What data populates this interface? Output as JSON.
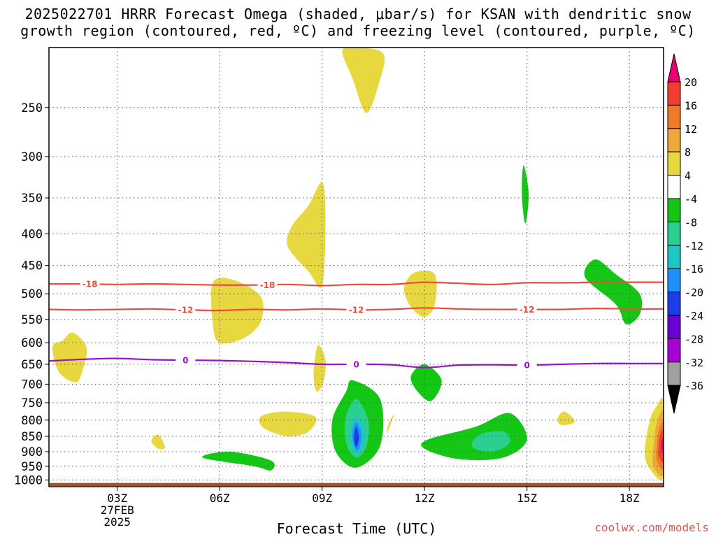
{
  "title": {
    "line1": "2025022701 HRRR Forecast Omega (shaded, μbar/s) for KSAN with dendritic snow",
    "line2": "growth region (contoured, red, ºC) and freezing level (contoured, purple, ºC)"
  },
  "chart_data": {
    "type": "contour",
    "title": "2025022701 HRRR Forecast Omega (shaded, μbar/s) for KSAN with dendritic snow growth region (contoured, red, ºC) and freezing level (contoured, purple, ºC)",
    "xlabel": "Forecast Time (UTC)",
    "ylabel": "",
    "x_ticks": [
      "03Z",
      "06Z",
      "09Z",
      "12Z",
      "15Z",
      "18Z"
    ],
    "x_tick_hours": [
      3,
      6,
      9,
      12,
      15,
      18
    ],
    "x_date_label": [
      "27FEB",
      "2025"
    ],
    "xlim_hours": [
      1,
      19
    ],
    "y_ticks": [
      250,
      300,
      350,
      400,
      450,
      500,
      550,
      600,
      650,
      700,
      750,
      800,
      850,
      900,
      950,
      1000
    ],
    "y_scale": "log",
    "ylim_hpa": [
      1025,
      200
    ],
    "grid": true,
    "colorbar": {
      "labels": [
        "20",
        "16",
        "12",
        "8",
        "4",
        "-4",
        "-8",
        "-12",
        "-16",
        "-20",
        "-24",
        "-28",
        "-32",
        "-36"
      ],
      "colors": [
        "#e8006e",
        "#f43c30",
        "#f07a2a",
        "#eca83a",
        "#e8d840",
        "#ffffff",
        "#15c715",
        "#2bcf8e",
        "#1ec6c6",
        "#1e90ff",
        "#1d3ee6",
        "#6a00d6",
        "#a800d6",
        "#a0a0a0",
        "#000000"
      ]
    },
    "contours": [
      {
        "name": "-18",
        "color": "#f04a3c",
        "points": [
          [
            1,
            482
          ],
          [
            2,
            482
          ],
          [
            3,
            483
          ],
          [
            4,
            482
          ],
          [
            5,
            483
          ],
          [
            6,
            484
          ],
          [
            7,
            484
          ],
          [
            8,
            483
          ],
          [
            9,
            485
          ],
          [
            10,
            483
          ],
          [
            11,
            483
          ],
          [
            12,
            479
          ],
          [
            13,
            481
          ],
          [
            14,
            483
          ],
          [
            15,
            480
          ],
          [
            16,
            480
          ],
          [
            17,
            479
          ],
          [
            18,
            479
          ],
          [
            19,
            479
          ]
        ],
        "label_hours": [
          2.2,
          7.4
        ]
      },
      {
        "name": "-12",
        "color": "#f04a3c",
        "points": [
          [
            1,
            530
          ],
          [
            2,
            531
          ],
          [
            3,
            530
          ],
          [
            4,
            529
          ],
          [
            5,
            531
          ],
          [
            6,
            532
          ],
          [
            7,
            530
          ],
          [
            8,
            531
          ],
          [
            9,
            529
          ],
          [
            10,
            531
          ],
          [
            11,
            530
          ],
          [
            12,
            527
          ],
          [
            13,
            529
          ],
          [
            14,
            530
          ],
          [
            15,
            530
          ],
          [
            16,
            530
          ],
          [
            17,
            528
          ],
          [
            18,
            529
          ],
          [
            19,
            529
          ]
        ],
        "label_hours": [
          5.0,
          10.0,
          15.0
        ]
      },
      {
        "name": "0",
        "color": "#9a12c8",
        "points": [
          [
            1,
            642
          ],
          [
            2,
            638
          ],
          [
            3,
            636
          ],
          [
            4,
            639
          ],
          [
            5,
            640
          ],
          [
            6,
            641
          ],
          [
            7,
            643
          ],
          [
            8,
            646
          ],
          [
            9,
            650
          ],
          [
            10,
            650
          ],
          [
            11,
            651
          ],
          [
            12,
            658
          ],
          [
            13,
            652
          ],
          [
            14,
            651
          ],
          [
            15,
            652
          ],
          [
            16,
            650
          ],
          [
            17,
            648
          ],
          [
            18,
            648
          ],
          [
            19,
            648
          ]
        ],
        "label_hours": [
          5.0,
          10.0,
          15.0
        ]
      }
    ],
    "omega_regions": [
      {
        "value": 4,
        "color": "#e8d840",
        "outline": [
          [
            10.2,
            200
          ],
          [
            10.8,
            205
          ],
          [
            10.7,
            225
          ],
          [
            10.3,
            255
          ],
          [
            9.9,
            225
          ],
          [
            9.6,
            205
          ],
          [
            9.7,
            200
          ]
        ]
      },
      {
        "value": 4,
        "color": "#e8d840",
        "outline": [
          [
            9.0,
            330
          ],
          [
            9.1,
            380
          ],
          [
            9.0,
            485
          ],
          [
            8.6,
            460
          ],
          [
            8.0,
            420
          ],
          [
            8.1,
            390
          ],
          [
            8.6,
            360
          ]
        ]
      },
      {
        "value": 4,
        "color": "#e8d840",
        "outline": [
          [
            5.8,
            480
          ],
          [
            6.4,
            475
          ],
          [
            7.2,
            505
          ],
          [
            7.2,
            555
          ],
          [
            6.7,
            590
          ],
          [
            6.0,
            600
          ],
          [
            5.8,
            560
          ]
        ]
      },
      {
        "value": 4,
        "color": "#e8d840",
        "outline": [
          [
            1.7,
            578
          ],
          [
            2.1,
            610
          ],
          [
            2.0,
            660
          ],
          [
            1.8,
            695
          ],
          [
            1.3,
            670
          ],
          [
            1.1,
            610
          ],
          [
            1.4,
            595
          ]
        ]
      },
      {
        "value": 4,
        "color": "#e8d840",
        "outline": [
          [
            8.9,
            605
          ],
          [
            9.1,
            640
          ],
          [
            9.05,
            690
          ],
          [
            8.85,
            720
          ],
          [
            8.75,
            680
          ],
          [
            8.8,
            630
          ]
        ]
      },
      {
        "value": 4,
        "color": "#e8d840",
        "outline": [
          [
            11.7,
            462
          ],
          [
            12.3,
            465
          ],
          [
            12.3,
            520
          ],
          [
            12.0,
            545
          ],
          [
            11.6,
            525
          ],
          [
            11.4,
            490
          ]
        ]
      },
      {
        "value": 4,
        "color": "#e8d840",
        "outline": [
          [
            7.2,
            790
          ],
          [
            7.9,
            775
          ],
          [
            8.8,
            790
          ],
          [
            8.6,
            835
          ],
          [
            8.0,
            850
          ],
          [
            7.3,
            825
          ]
        ]
      },
      {
        "value": 4,
        "color": "#e8d840",
        "outline": [
          [
            4.0,
            865
          ],
          [
            4.2,
            845
          ],
          [
            4.4,
            885
          ],
          [
            4.2,
            890
          ]
        ]
      },
      {
        "value": 4,
        "color": "#e8d840",
        "outline": [
          [
            10.95,
            810
          ],
          [
            11.1,
            785
          ],
          [
            10.9,
            840
          ]
        ]
      },
      {
        "value": 4,
        "color": "#e8d840",
        "outline": [
          [
            15.9,
            795
          ],
          [
            16.1,
            775
          ],
          [
            16.4,
            805
          ],
          [
            16.0,
            815
          ]
        ]
      },
      {
        "value": -4,
        "color": "#15c715",
        "outline": [
          [
            14.9,
            310
          ],
          [
            15.05,
            345
          ],
          [
            14.95,
            385
          ],
          [
            14.85,
            345
          ]
        ]
      },
      {
        "value": -4,
        "color": "#15c715",
        "outline": [
          [
            17.0,
            440
          ],
          [
            17.6,
            465
          ],
          [
            18.3,
            500
          ],
          [
            18.3,
            540
          ],
          [
            17.9,
            560
          ],
          [
            17.6,
            520
          ],
          [
            16.7,
            470
          ]
        ]
      },
      {
        "value": -4,
        "color": "#15c715",
        "outline": [
          [
            12.0,
            650
          ],
          [
            12.5,
            690
          ],
          [
            12.2,
            745
          ],
          [
            11.8,
            720
          ],
          [
            11.6,
            680
          ]
        ]
      },
      {
        "value": -4,
        "color": "#15c715",
        "outline": [
          [
            9.9,
            690
          ],
          [
            10.7,
            740
          ],
          [
            10.7,
            880
          ],
          [
            10.0,
            955
          ],
          [
            9.4,
            900
          ],
          [
            9.3,
            800
          ],
          [
            9.7,
            720
          ]
        ]
      },
      {
        "value": -4,
        "color": "#15c715",
        "outline": [
          [
            12.1,
            860
          ],
          [
            13.5,
            820
          ],
          [
            14.5,
            780
          ],
          [
            15.0,
            860
          ],
          [
            14.3,
            920
          ],
          [
            13.0,
            925
          ],
          [
            12.0,
            890
          ]
        ]
      },
      {
        "value": -4,
        "color": "#15c715",
        "outline": [
          [
            5.5,
            920
          ],
          [
            6.3,
            900
          ],
          [
            7.5,
            930
          ],
          [
            7.5,
            965
          ],
          [
            7.0,
            950
          ]
        ]
      },
      {
        "value": -8,
        "color": "#2bcf8e",
        "outline": [
          [
            13.6,
            845
          ],
          [
            14.3,
            835
          ],
          [
            14.5,
            870
          ],
          [
            14.0,
            900
          ],
          [
            13.4,
            885
          ]
        ]
      },
      {
        "value": -8,
        "color": "#2bcf8e",
        "outline": [
          [
            10.0,
            740
          ],
          [
            10.35,
            800
          ],
          [
            10.3,
            880
          ],
          [
            10.0,
            920
          ],
          [
            9.7,
            870
          ],
          [
            9.7,
            790
          ]
        ]
      },
      {
        "value": -12,
        "color": "#1ec6c6",
        "outline": [
          [
            10.0,
            790
          ],
          [
            10.25,
            830
          ],
          [
            10.2,
            890
          ],
          [
            10.0,
            905
          ],
          [
            9.85,
            870
          ],
          [
            9.85,
            820
          ]
        ]
      },
      {
        "value": -16,
        "color": "#1e90ff",
        "outline": [
          [
            10.0,
            805
          ],
          [
            10.15,
            840
          ],
          [
            10.1,
            885
          ],
          [
            10.0,
            895
          ],
          [
            9.9,
            865
          ],
          [
            9.9,
            830
          ]
        ]
      },
      {
        "value": -20,
        "color": "#1d3ee6",
        "outline": [
          [
            10.0,
            820
          ],
          [
            10.08,
            855
          ],
          [
            10.0,
            885
          ],
          [
            9.93,
            855
          ]
        ]
      },
      {
        "value": 4,
        "color": "#e8d840",
        "outline": [
          [
            18.6,
            800
          ],
          [
            18.8,
            760
          ],
          [
            19,
            750
          ],
          [
            19,
            985
          ],
          [
            18.6,
            960
          ],
          [
            18.45,
            900
          ]
        ]
      },
      {
        "value": 8,
        "color": "#eca83a",
        "outline": [
          [
            18.8,
            810
          ],
          [
            19,
            780
          ],
          [
            19,
            975
          ],
          [
            18.7,
            950
          ],
          [
            18.7,
            890
          ]
        ]
      },
      {
        "value": 12,
        "color": "#f07a2a",
        "outline": [
          [
            18.85,
            835
          ],
          [
            19,
            810
          ],
          [
            19,
            955
          ],
          [
            18.8,
            930
          ],
          [
            18.8,
            885
          ]
        ]
      },
      {
        "value": 16,
        "color": "#f43c30",
        "outline": [
          [
            18.9,
            845
          ],
          [
            19,
            835
          ],
          [
            19,
            935
          ],
          [
            18.85,
            910
          ],
          [
            18.87,
            870
          ]
        ]
      },
      {
        "value": 20,
        "color": "#e8006e",
        "outline": [
          [
            18.95,
            860
          ],
          [
            19,
            855
          ],
          [
            19,
            905
          ],
          [
            18.93,
            890
          ]
        ]
      }
    ],
    "terrain_color": "#a0522d"
  },
  "credit": "coolwx.com/models"
}
